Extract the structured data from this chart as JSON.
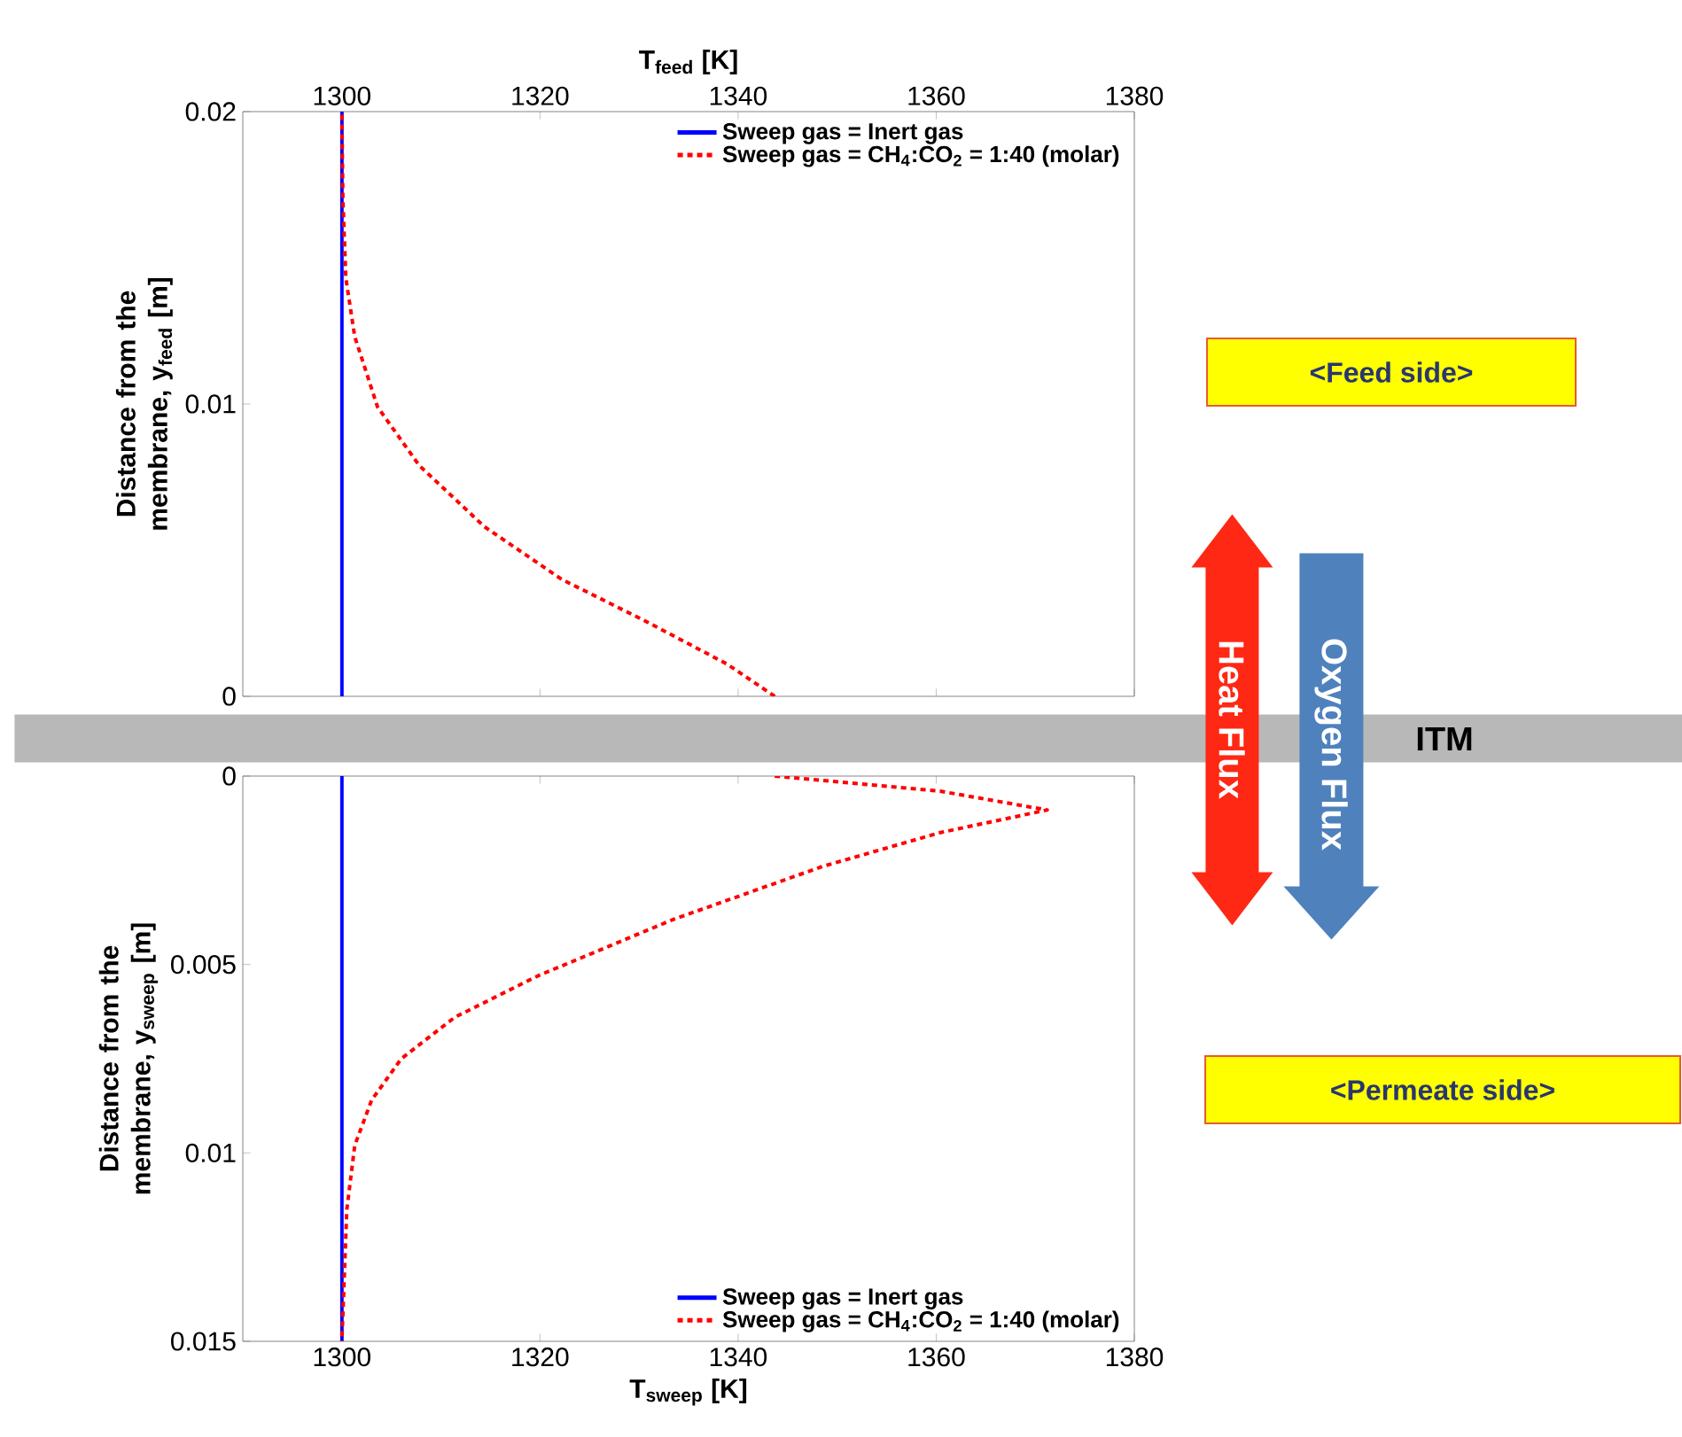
{
  "chart_data": [
    {
      "type": "line",
      "xlabel": "T$_{feed}$ [K]",
      "ylabel": "Distance from the membrane, y$_{feed}$ [m]",
      "xlim": [
        1290,
        1380
      ],
      "xticks": [
        1300,
        1320,
        1340,
        1360,
        1380
      ],
      "ylim": [
        0,
        0.02
      ],
      "yticks": [
        0,
        0.01,
        0.02
      ],
      "legend": "top right",
      "marker": "none",
      "grid": false,
      "series": [
        {
          "name": "Sweep gas = Inert gas",
          "color": "#0000ff",
          "line_style": "solid",
          "x": [
            1300,
            1300
          ],
          "values": [
            0,
            0.02
          ]
        },
        {
          "name": "Sweep gas = CH$_{4}$:CO$_{2}$ = 1:40 (molar)",
          "color": "#ff0000",
          "line_style": "dashed",
          "x": [
            1343.7,
            1338.9,
            1330.5,
            1322.2,
            1314.4,
            1307.8,
            1303.6,
            1301.3,
            1300.4,
            1300.1,
            1300
          ],
          "values": [
            0,
            0.0011,
            0.0026,
            0.004,
            0.0058,
            0.0079,
            0.0099,
            0.0123,
            0.0143,
            0.017,
            0.02
          ]
        }
      ],
      "annotations": [
        "<Feed side>"
      ]
    },
    {
      "type": "line",
      "xlabel": "T$_{sweep}$ [K]",
      "ylabel": "Distance from the membrane, y$_{sweep}$ [m]",
      "xlim": [
        1290,
        1380
      ],
      "xticks": [
        1300,
        1320,
        1340,
        1360,
        1380
      ],
      "ylim": [
        0.015,
        0
      ],
      "yticks": [
        0,
        0.005,
        0.01,
        0.015
      ],
      "legend": "bottom right",
      "marker": "none",
      "grid": false,
      "series": [
        {
          "name": "Sweep gas = Inert gas",
          "color": "#0000ff",
          "line_style": "solid",
          "x": [
            1300,
            1300
          ],
          "values": [
            0,
            0.015
          ]
        },
        {
          "name": "Sweep gas = CH$_{4}$:CO$_{2}$ = 1:40 (molar)",
          "color": "#ff0000",
          "line_style": "dashed",
          "x": [
            1343.7,
            1360.4,
            1371.2,
            1360.4,
            1348.5,
            1333.5,
            1319.8,
            1311.4,
            1306,
            1303,
            1301.3,
            1300.5,
            1300
          ],
          "values": [
            0,
            0.0004,
            0.0009,
            0.0015,
            0.0024,
            0.0038,
            0.0053,
            0.0064,
            0.0075,
            0.0086,
            0.0098,
            0.0115,
            0.015
          ]
        }
      ],
      "annotations": [
        "ITM",
        "Heat Flux",
        "Oxygen Flux",
        "<Permeate side>"
      ]
    }
  ]
}
